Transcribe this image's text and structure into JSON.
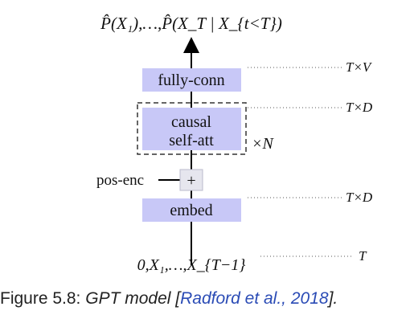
{
  "colors": {
    "box_fill": "#c8c8f7",
    "box_stroke": "#c8c8f7",
    "line": "#000000",
    "dotted": "#555555",
    "cite": "#2a4bb5",
    "plus_fill": "#e6e6ee"
  },
  "diagram": {
    "output_label": "P̂(X₁),…,P̂(X_T | X_{t<T})",
    "input_label": "0,X₁,…,X_{T−1}",
    "blocks": {
      "fc": "fully-conn",
      "attn_line1": "causal",
      "attn_line2": "self-att",
      "embed": "embed"
    },
    "pos_enc_label": "pos-enc",
    "plus_symbol": "+",
    "repeat_label": "×N",
    "shapes": {
      "fc": "T×V",
      "attn": "T×D",
      "embed": "T×D",
      "input": "T"
    }
  },
  "caption": {
    "prefix": "Figure 5.8: ",
    "title": "GPT model [",
    "citation": "Radford et al., 2018",
    "suffix": "]."
  }
}
